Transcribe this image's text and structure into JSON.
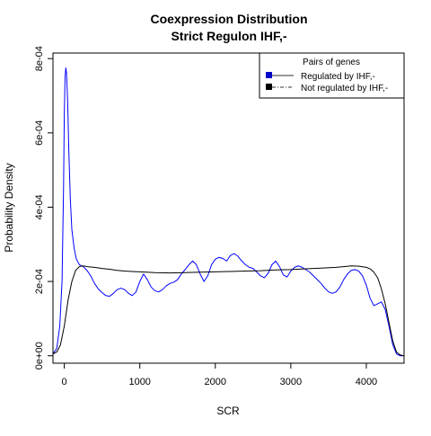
{
  "chart_data": {
    "type": "line",
    "title": "Coexpression Distribution",
    "subtitle": "Strict Regulon IHF,-",
    "xlabel": "SCR",
    "ylabel": "Probability Density",
    "xlim": [
      -150,
      4500
    ],
    "ylim": [
      -2e-05,
      0.000815
    ],
    "x_ticks": [
      0,
      1000,
      2000,
      3000,
      4000
    ],
    "x_tick_labels": [
      "0",
      "1000",
      "2000",
      "3000",
      "4000"
    ],
    "y_ticks": [
      0,
      0.0002,
      0.0004,
      0.0006,
      0.0008
    ],
    "y_tick_labels": [
      "0e+00",
      "2e-04",
      "4e-04",
      "6e-04",
      "8e-04"
    ],
    "grid": false,
    "legend": {
      "title": "Pairs of genes",
      "placement": "top-right",
      "entries": [
        "Regulated by IHF,-",
        "Not regulated by IHF,-"
      ]
    },
    "series": [
      {
        "name": "Regulated by IHF,-",
        "color": "#0000ff",
        "x": [
          -150,
          -100,
          -60,
          -30,
          -10,
          0,
          10,
          20,
          30,
          45,
          60,
          80,
          100,
          130,
          160,
          200,
          250,
          300,
          350,
          400,
          450,
          500,
          550,
          600,
          650,
          700,
          750,
          800,
          850,
          900,
          950,
          1000,
          1050,
          1100,
          1150,
          1200,
          1250,
          1300,
          1350,
          1400,
          1450,
          1500,
          1550,
          1600,
          1650,
          1700,
          1750,
          1800,
          1850,
          1900,
          1950,
          2000,
          2050,
          2100,
          2150,
          2200,
          2250,
          2300,
          2350,
          2400,
          2450,
          2500,
          2550,
          2600,
          2650,
          2700,
          2750,
          2800,
          2850,
          2900,
          2950,
          3000,
          3050,
          3100,
          3150,
          3200,
          3250,
          3300,
          3350,
          3400,
          3450,
          3500,
          3550,
          3600,
          3650,
          3700,
          3750,
          3800,
          3850,
          3900,
          3950,
          4000,
          4050,
          4100,
          4150,
          4200,
          4250,
          4300,
          4350,
          4400,
          4450,
          4500
        ],
        "y": [
          5e-06,
          2e-05,
          8e-05,
          0.0002,
          0.00045,
          0.00065,
          0.00075,
          0.000775,
          0.00076,
          0.00068,
          0.00055,
          0.00042,
          0.00034,
          0.00029,
          0.00026,
          0.000245,
          0.00024,
          0.00023,
          0.000215,
          0.000195,
          0.00018,
          0.00017,
          0.000162,
          0.00016,
          0.000168,
          0.000178,
          0.000182,
          0.000178,
          0.000168,
          0.000162,
          0.000172,
          0.0002,
          0.00022,
          0.000205,
          0.000185,
          0.000175,
          0.000172,
          0.000178,
          0.000188,
          0.000195,
          0.000198,
          0.000205,
          0.00022,
          0.000232,
          0.000245,
          0.000255,
          0.000245,
          0.00022,
          0.0002,
          0.000215,
          0.000245,
          0.00026,
          0.000265,
          0.000262,
          0.000255,
          0.00027,
          0.000275,
          0.000268,
          0.000255,
          0.000245,
          0.000238,
          0.000235,
          0.000225,
          0.000215,
          0.00021,
          0.000222,
          0.000245,
          0.000255,
          0.00024,
          0.000218,
          0.000212,
          0.000228,
          0.000238,
          0.000242,
          0.000238,
          0.000232,
          0.000225,
          0.000215,
          0.000205,
          0.000195,
          0.000182,
          0.000172,
          0.000168,
          0.000172,
          0.000185,
          0.000205,
          0.00022,
          0.00023,
          0.000232,
          0.000228,
          0.000215,
          0.00019,
          0.000155,
          0.000135,
          0.00014,
          0.000145,
          0.000125,
          8e-05,
          3e-05,
          5e-06,
          0.0,
          0.0
        ]
      },
      {
        "name": "Not regulated by IHF,-",
        "color": "#000000",
        "x": [
          -150,
          -100,
          -50,
          0,
          50,
          100,
          150,
          200,
          250,
          300,
          400,
          500,
          600,
          700,
          800,
          900,
          1000,
          1200,
          1400,
          1600,
          1800,
          2000,
          2200,
          2400,
          2600,
          2800,
          3000,
          3200,
          3400,
          3600,
          3700,
          3800,
          3900,
          4000,
          4050,
          4100,
          4150,
          4200,
          4250,
          4300,
          4350,
          4400,
          4450,
          4500
        ],
        "y": [
          5e-06,
          1e-05,
          3e-05,
          8e-05,
          0.00015,
          0.0002,
          0.00023,
          0.00024,
          0.000242,
          0.00024,
          0.000238,
          0.000235,
          0.000233,
          0.00023,
          0.000228,
          0.000227,
          0.000226,
          0.000224,
          0.000223,
          0.000224,
          0.000225,
          0.000226,
          0.000227,
          0.000228,
          0.000229,
          0.000231,
          0.000232,
          0.000234,
          0.000236,
          0.000238,
          0.00024,
          0.000242,
          0.000241,
          0.000238,
          0.000234,
          0.000225,
          0.00021,
          0.00018,
          0.00014,
          9e-05,
          4e-05,
          1e-05,
          2e-06,
          0.0
        ]
      }
    ]
  }
}
